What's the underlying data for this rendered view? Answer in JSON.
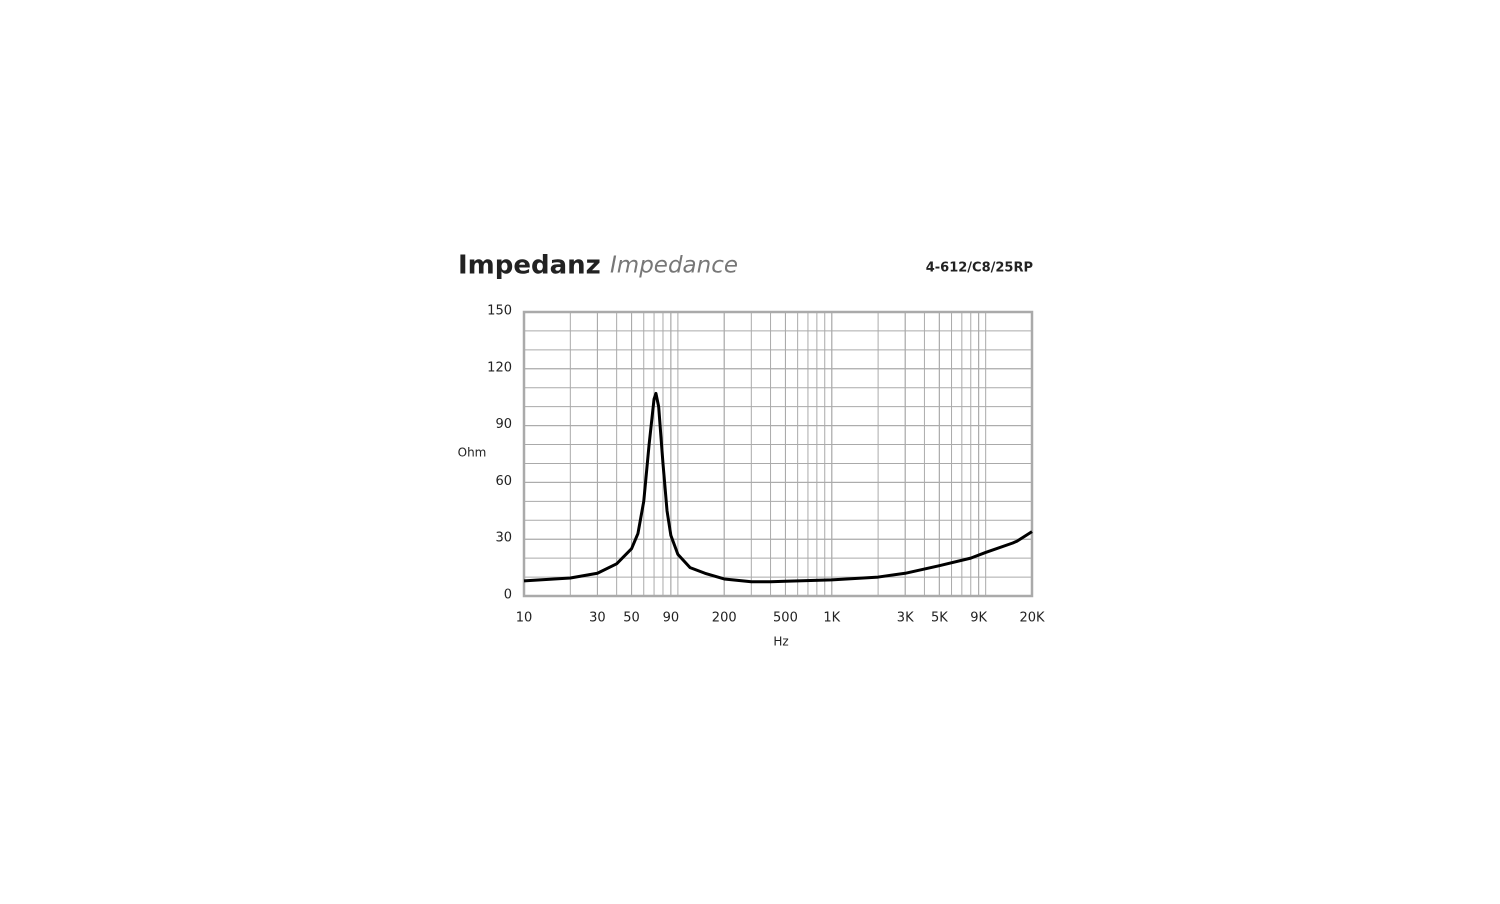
{
  "chart_data": {
    "type": "line",
    "title": "Impedanz",
    "subtitle": "Impedance",
    "annotation": "4-612/C8/25RP",
    "ylabel": "Ohm",
    "xlabel": "Hz",
    "xscale": "log",
    "xlim": [
      10,
      20000
    ],
    "xticks": [
      10,
      30,
      50,
      90,
      200,
      500,
      {
        "value": 1000,
        "label": "1K"
      },
      {
        "value": 3000,
        "label": "3K"
      },
      {
        "value": 5000,
        "label": "5K"
      },
      {
        "value": 9000,
        "label": "9K"
      },
      {
        "value": 20000,
        "label": "20K"
      }
    ],
    "xgrid": [
      20,
      30,
      40,
      50,
      60,
      70,
      80,
      90,
      100,
      200,
      300,
      400,
      500,
      600,
      700,
      800,
      900,
      1000,
      2000,
      3000,
      4000,
      5000,
      6000,
      7000,
      8000,
      9000,
      10000
    ],
    "ylim": [
      0,
      150
    ],
    "yticks": [
      0,
      30,
      60,
      90,
      120,
      150
    ],
    "ygrid": [
      10,
      20,
      30,
      40,
      50,
      60,
      70,
      80,
      90,
      100,
      110,
      120,
      130,
      140
    ],
    "grid_color": "#aaaaaa",
    "series": [
      {
        "name": "Impedance",
        "color": "#000000",
        "x": [
          10,
          20,
          30,
          40,
          50,
          55,
          60,
          65,
          70,
          72,
          75,
          80,
          85,
          90,
          100,
          120,
          150,
          200,
          300,
          400,
          500,
          1000,
          2000,
          3000,
          5000,
          8000,
          10000,
          15000,
          16000,
          20000
        ],
        "values": [
          8,
          9.5,
          12,
          17,
          25,
          33,
          50,
          80,
          104,
          107,
          100,
          70,
          45,
          32,
          22,
          15,
          12,
          9,
          7.5,
          7.5,
          7.8,
          8.5,
          10,
          12,
          16,
          20,
          23,
          28,
          29,
          34
        ]
      }
    ]
  }
}
